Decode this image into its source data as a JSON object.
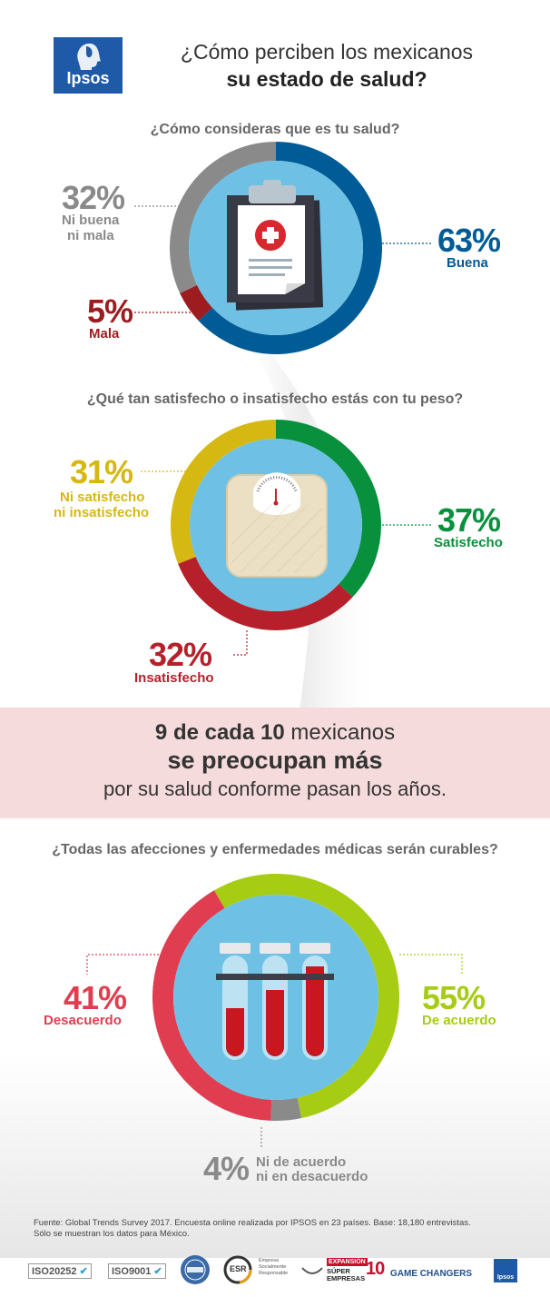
{
  "header": {
    "logo_text": "Ipsos",
    "title_line1": "¿Cómo perciben los mexicanos",
    "title_line2": "su estado de salud?"
  },
  "chart_data": [
    {
      "type": "pie",
      "variant": "donut",
      "title": "¿Cómo consideras que es tu salud?",
      "slices": [
        {
          "label": "Buena",
          "value": 63,
          "display": "63%",
          "color": "#005b96"
        },
        {
          "label": "Mala",
          "value": 5,
          "display": "5%",
          "color": "#9c1c1f"
        },
        {
          "label": "Ni buena ni mala",
          "value": 32,
          "display": "32%",
          "color": "#8a8a8a"
        }
      ]
    },
    {
      "type": "pie",
      "variant": "donut",
      "title": "¿Qué tan satisfecho o insatisfecho estás con tu peso?",
      "slices": [
        {
          "label": "Satisfecho",
          "value": 37,
          "display": "37%",
          "color": "#08903d"
        },
        {
          "label": "Insatisfecho",
          "value": 32,
          "display": "32%",
          "color": "#b6202a"
        },
        {
          "label": "Ni satisfecho ni insatisfecho",
          "value": 31,
          "display": "31%",
          "color": "#d6b812"
        }
      ]
    },
    {
      "type": "pie",
      "variant": "donut",
      "title": "¿Todas las afecciones y enfermedades médicas serán curables?",
      "slices": [
        {
          "label": "De acuerdo",
          "value": 55,
          "display": "55%",
          "color": "#a6cc14"
        },
        {
          "label": "Ni de acuerdo ni en desacuerdo",
          "value": 4,
          "display": "4%",
          "color": "#8a8a8a"
        },
        {
          "label": "Desacuerdo",
          "value": 41,
          "display": "41%",
          "color": "#e03e50"
        }
      ]
    }
  ],
  "labels": {
    "c1_buena_pct": "63%",
    "c1_buena_lbl": "Buena",
    "c1_mala_pct": "5%",
    "c1_mala_lbl": "Mala",
    "c1_ni_pct": "32%",
    "c1_ni_lbl1": "Ni buena",
    "c1_ni_lbl2": "ni mala",
    "c2_sat_pct": "37%",
    "c2_sat_lbl": "Satisfecho",
    "c2_ins_pct": "32%",
    "c2_ins_lbl": "Insatisfecho",
    "c2_ni_pct": "31%",
    "c2_ni_lbl1": "Ni satisfecho",
    "c2_ni_lbl2": "ni insatisfecho",
    "c3_ac_pct": "55%",
    "c3_ac_lbl": "De acuerdo",
    "c3_des_pct": "41%",
    "c3_des_lbl": "Desacuerdo",
    "c3_ni_pct": "4%",
    "c3_ni_lbl1": "Ni de acuerdo",
    "c3_ni_lbl2": "ni en desacuerdo"
  },
  "band": {
    "line1_bold": "9 de cada 10",
    "line1_rest": "mexicanos",
    "line2": "se preocupan más",
    "line3": "por su salud conforme pasan los años."
  },
  "footer": {
    "source_line1": "Fuente: Global Trends Survey 2017. Encuesta online realizada por IPSOS en 23 países. Base: 18,180 entrevistas.",
    "source_line2": "Sólo se muestran los datos para México.",
    "badges": {
      "iso1": "ISO20252",
      "iso2": "ISO9001",
      "esr": "ESR",
      "esr_text": "Empresa Socialmente Responsable",
      "expansion": "EXPANSIÓN",
      "super": "SÚPER EMPRESAS",
      "game_changers": "GAME CHANGERS",
      "ipsos_small": "Ipsos"
    }
  },
  "colors": {
    "inner_blue": "#6ec1e4",
    "dark_blue": "#005b96",
    "band_pink": "#f6dbdc"
  }
}
